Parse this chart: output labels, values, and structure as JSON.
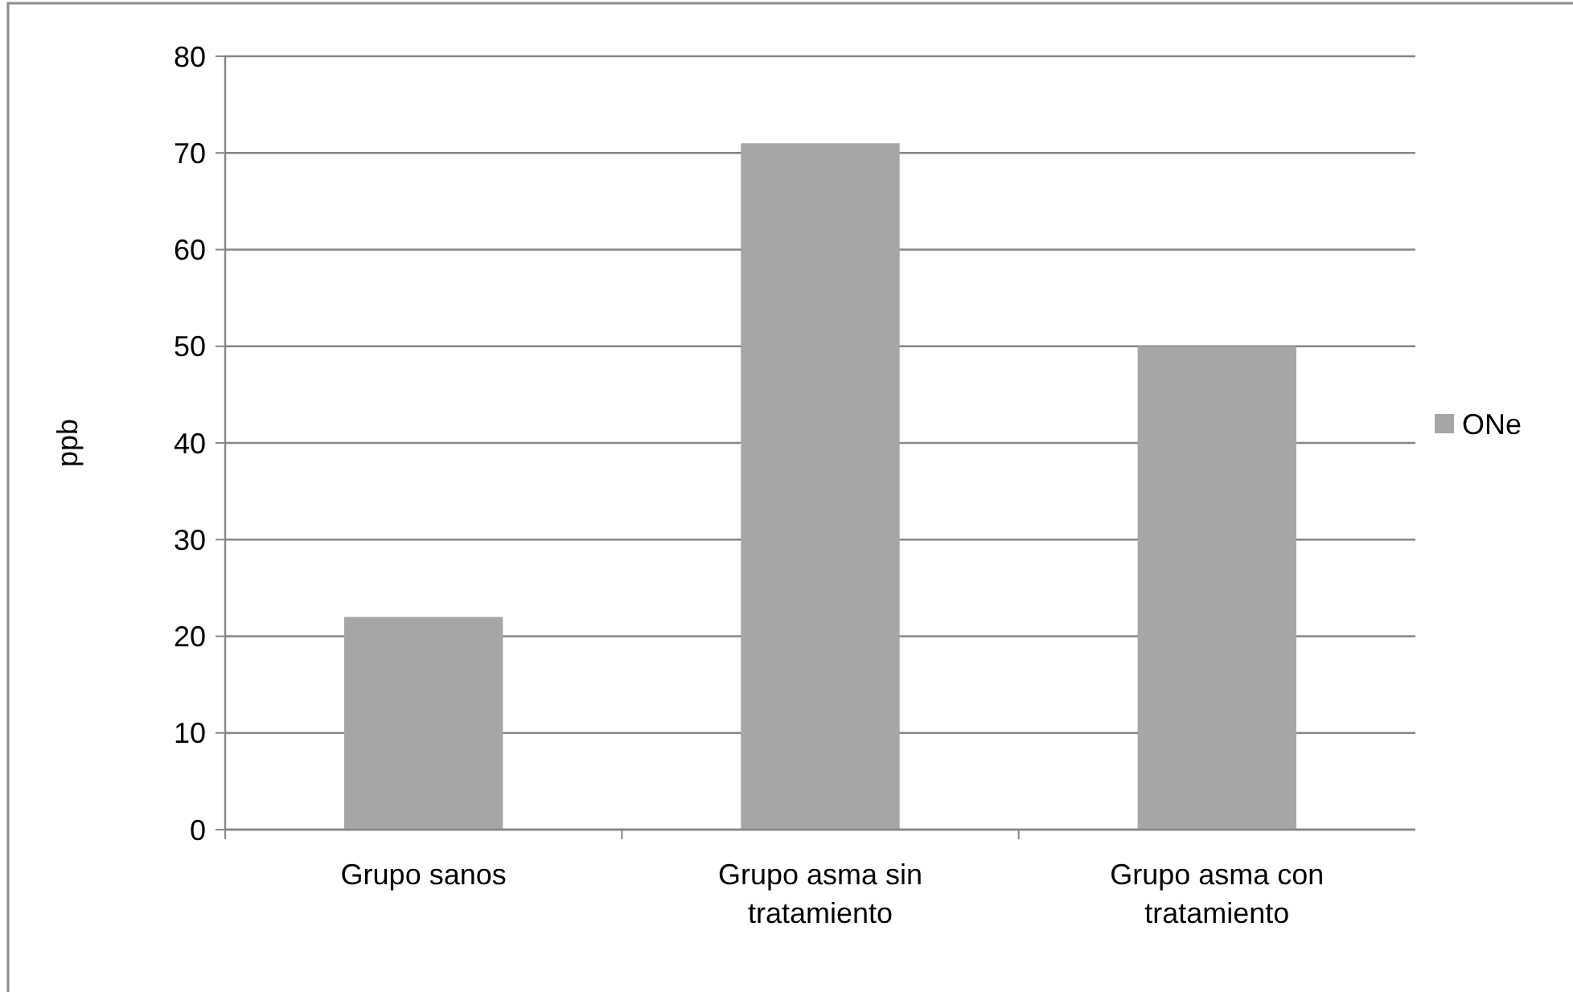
{
  "chart_data": {
    "type": "bar",
    "ylabel": "ppb",
    "categories": [
      "Grupo sanos",
      "Grupo asma sin tratamiento",
      "Grupo asma con tratamiento"
    ],
    "series": [
      {
        "name": "ONe",
        "color": "#a6a6a6",
        "values": [
          22,
          71,
          50
        ]
      }
    ],
    "ylim": [
      0,
      80
    ],
    "yticks": [
      0,
      10,
      20,
      30,
      40,
      50,
      60,
      70,
      80
    ],
    "grid": "y",
    "legend": "right"
  }
}
